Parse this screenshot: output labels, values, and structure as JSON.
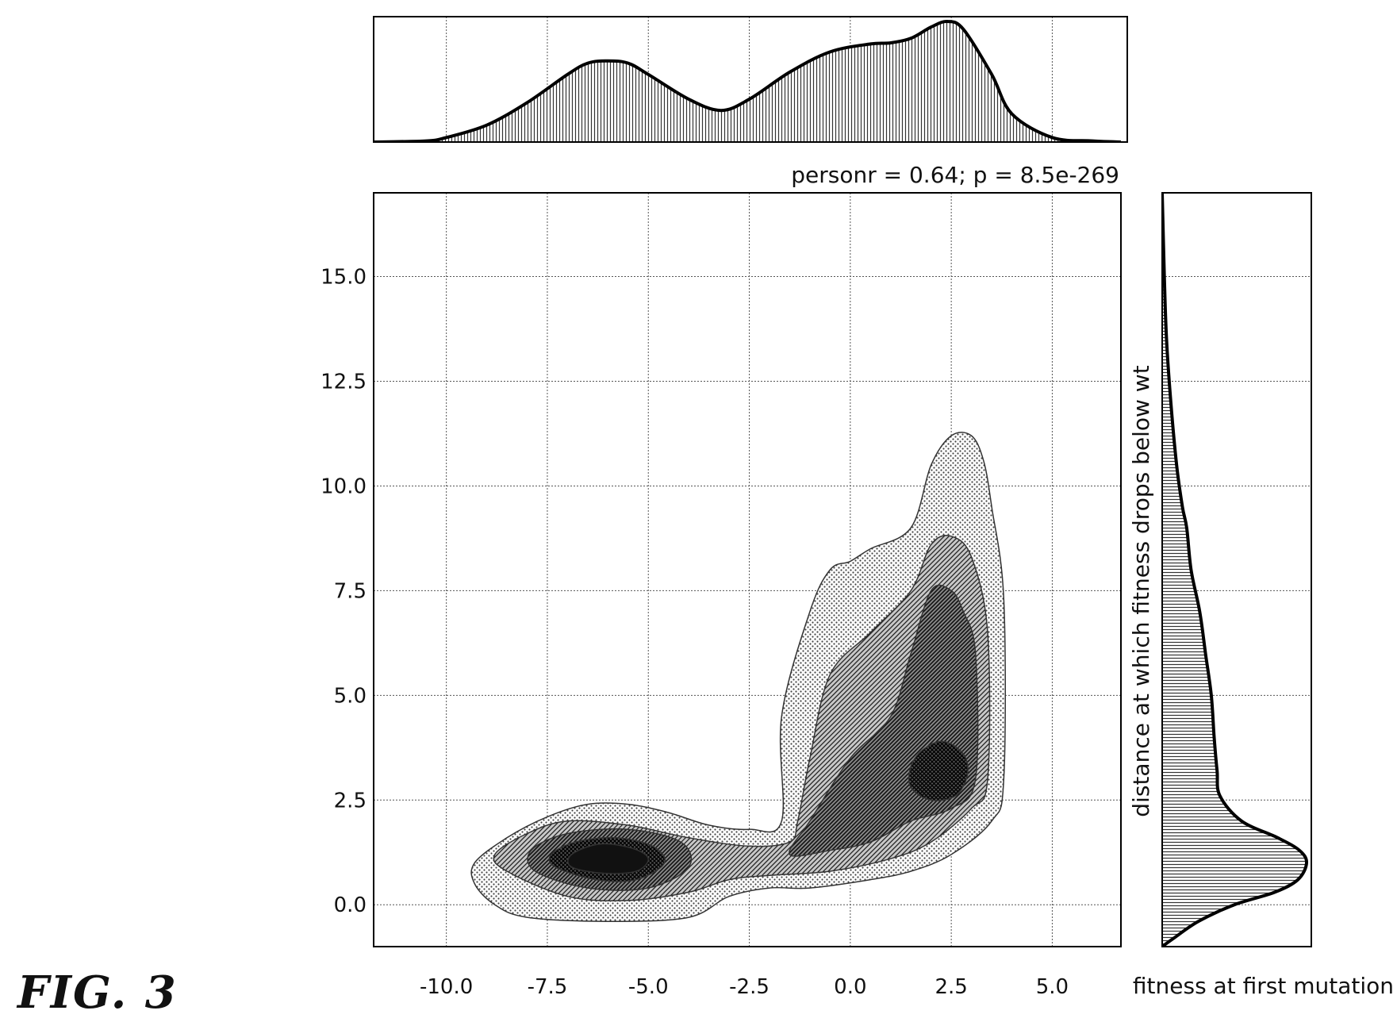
{
  "figure_label": "FIG. 3",
  "chart_data": {
    "type": "kde_joint",
    "annotation": "personr = 0.64; p = 8.5e-269",
    "xlabel": "fitness at first mutation",
    "ylabel": "distance at which fitness drops below wt",
    "xlim": [
      -11.8,
      6.7
    ],
    "ylim": [
      -1.0,
      17.0
    ],
    "xticks": [
      -10.0,
      -7.5,
      -5.0,
      -2.5,
      0.0,
      2.5,
      5.0
    ],
    "xtick_labels": [
      "-10.0",
      "-7.5",
      "-5.0",
      "-2.5",
      "0.0",
      "2.5",
      "5.0"
    ],
    "yticks": [
      0.0,
      2.5,
      5.0,
      7.5,
      10.0,
      12.5,
      15.0
    ],
    "ytick_labels": [
      "0.0",
      "2.5",
      "5.0",
      "7.5",
      "10.0",
      "12.5",
      "15.0"
    ],
    "grid": true,
    "contour_levels": [
      {
        "level": 1,
        "regions": [
          {
            "x": [
              -8.0,
              -6.0,
              -4.0,
              -3.0,
              -2.0,
              -1.0,
              0.5,
              1.5,
              2.5,
              3.5,
              3.8,
              3.8,
              3.5,
              3.3,
              3.0,
              2.5,
              2.0,
              1.5,
              0.5,
              0.0,
              -0.5,
              -1.0,
              -1.7,
              -1.7,
              -2.5,
              -3.5,
              -4.5,
              -5.5,
              -6.5,
              -7.5,
              -8.5,
              -9.3,
              -9.3,
              -8.8
            ],
            "y": [
              -0.3,
              -0.4,
              -0.3,
              0.2,
              0.4,
              0.4,
              0.6,
              0.8,
              1.2,
              2.0,
              3.0,
              7.3,
              9.5,
              10.6,
              11.2,
              11.2,
              10.5,
              9.0,
              8.5,
              8.2,
              8.0,
              7.0,
              4.5,
              2.0,
              1.8,
              1.9,
              2.2,
              2.4,
              2.4,
              2.1,
              1.6,
              1.0,
              0.5,
              0.0
            ]
          }
        ]
      },
      {
        "level": 2,
        "regions": [
          {
            "x": [
              -8.5,
              -7.0,
              -5.5,
              -4.0,
              -3.0,
              -2.0,
              -0.5,
              1.0,
              2.0,
              3.0,
              3.4,
              3.4,
              3.0,
              2.5,
              2.0,
              1.5,
              0.5,
              -0.5,
              -1.0,
              -1.3,
              -1.5,
              -2.5,
              -4.0,
              -5.5,
              -7.0,
              -8.0,
              -8.8
            ],
            "y": [
              0.8,
              0.2,
              0.1,
              0.3,
              0.6,
              0.7,
              0.8,
              1.1,
              1.5,
              2.3,
              3.0,
              6.5,
              8.3,
              8.8,
              8.6,
              7.5,
              6.5,
              5.5,
              3.5,
              2.0,
              1.5,
              1.4,
              1.6,
              1.9,
              2.0,
              1.7,
              1.2
            ]
          }
        ]
      },
      {
        "level": 3,
        "regions": [
          {
            "x": [
              -7.8,
              -6.5,
              -5.0,
              -4.0,
              -4.2,
              -5.5,
              -7.0,
              -7.9
            ],
            "y": [
              0.8,
              0.4,
              0.4,
              0.9,
              1.5,
              1.8,
              1.7,
              1.3
            ]
          },
          {
            "x": [
              -1.5,
              -0.5,
              0.5,
              1.5,
              2.5,
              3.1,
              3.1,
              2.8,
              2.5,
              2.0,
              1.5,
              1.0,
              0.0,
              -1.0
            ],
            "y": [
              1.2,
              1.3,
              1.5,
              2.0,
              2.3,
              3.0,
              6.0,
              7.0,
              7.5,
              7.5,
              6.0,
              4.5,
              3.5,
              2.0
            ]
          }
        ]
      },
      {
        "level": 4,
        "regions": [
          {
            "x": [
              -7.3,
              -6.3,
              -5.3,
              -4.6,
              -4.9,
              -5.8,
              -6.8,
              -7.4
            ],
            "y": [
              0.9,
              0.6,
              0.6,
              1.0,
              1.4,
              1.6,
              1.5,
              1.2
            ]
          },
          {
            "x": [
              1.5,
              2.0,
              2.6,
              2.9,
              2.8,
              2.3,
              1.8,
              1.5
            ],
            "y": [
              2.8,
              2.5,
              2.6,
              3.1,
              3.6,
              3.9,
              3.7,
              3.3
            ]
          }
        ]
      },
      {
        "level": 5,
        "regions": [
          {
            "x": [
              -6.9,
              -6.1,
              -5.3,
              -5.0,
              -5.4,
              -6.2,
              -6.9
            ],
            "y": [
              0.9,
              0.75,
              0.8,
              1.1,
              1.35,
              1.45,
              1.2
            ]
          }
        ]
      }
    ],
    "marginal_x": {
      "x": [
        -11.8,
        -10.5,
        -10.0,
        -9.0,
        -8.0,
        -7.0,
        -6.5,
        -6.0,
        -5.5,
        -5.0,
        -4.0,
        -3.2,
        -2.5,
        -1.5,
        -0.5,
        0.5,
        1.0,
        1.5,
        2.0,
        2.4,
        2.8,
        3.5,
        4.0,
        5.0,
        6.0,
        6.7
      ],
      "density": [
        0.0,
        0.01,
        0.04,
        0.15,
        0.35,
        0.6,
        0.7,
        0.72,
        0.7,
        0.6,
        0.38,
        0.28,
        0.38,
        0.62,
        0.8,
        0.87,
        0.88,
        0.92,
        1.02,
        1.07,
        1.0,
        0.6,
        0.25,
        0.04,
        0.01,
        0.0
      ]
    },
    "marginal_y": {
      "y": [
        -1.0,
        -0.8,
        -0.4,
        0.0,
        0.3,
        0.6,
        1.0,
        1.3,
        1.6,
        2.0,
        2.6,
        3.2,
        4.0,
        5.0,
        6.0,
        7.0,
        8.0,
        9.0,
        9.5,
        10.5,
        12.0,
        13.5,
        15.0,
        17.0
      ],
      "density": [
        0.0,
        0.08,
        0.25,
        0.5,
        0.78,
        0.94,
        1.0,
        0.95,
        0.8,
        0.55,
        0.4,
        0.38,
        0.36,
        0.34,
        0.3,
        0.26,
        0.2,
        0.17,
        0.14,
        0.1,
        0.06,
        0.03,
        0.015,
        0.0
      ]
    }
  }
}
